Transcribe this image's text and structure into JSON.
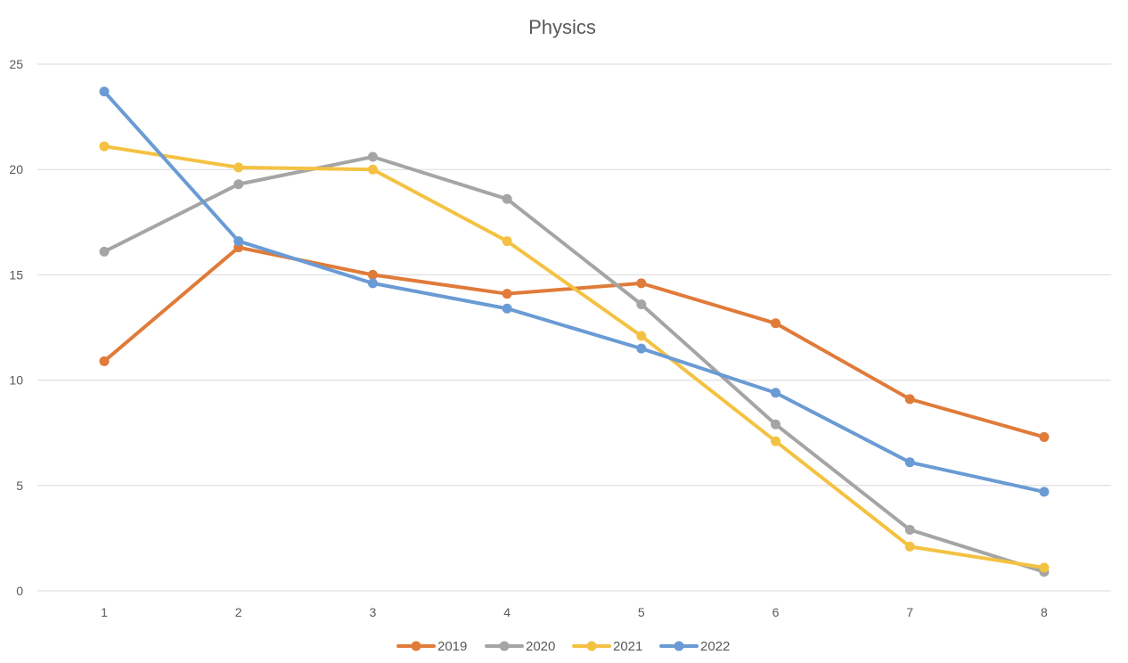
{
  "chart_data": {
    "type": "line",
    "title": "Physics",
    "xlabel": "",
    "ylabel": "",
    "categories": [
      "1",
      "2",
      "3",
      "4",
      "5",
      "6",
      "7",
      "8"
    ],
    "ylim": [
      0,
      25
    ],
    "yticks": [
      0,
      5,
      10,
      15,
      20,
      25
    ],
    "grid": true,
    "legend_position": "bottom",
    "series": [
      {
        "name": "2019",
        "color": "#E07B39",
        "values": [
          10.9,
          16.3,
          15.0,
          14.1,
          14.6,
          12.7,
          9.1,
          7.3
        ]
      },
      {
        "name": "2020",
        "color": "#A5A5A5",
        "values": [
          16.1,
          19.3,
          20.6,
          18.6,
          13.6,
          7.9,
          2.9,
          0.9
        ]
      },
      {
        "name": "2021",
        "color": "#F4C242",
        "values": [
          21.1,
          20.1,
          20.0,
          16.6,
          12.1,
          7.1,
          2.1,
          1.1
        ]
      },
      {
        "name": "2022",
        "color": "#6A9BD4",
        "values": [
          23.7,
          16.6,
          14.6,
          13.4,
          11.5,
          9.4,
          6.1,
          4.7
        ]
      }
    ]
  }
}
